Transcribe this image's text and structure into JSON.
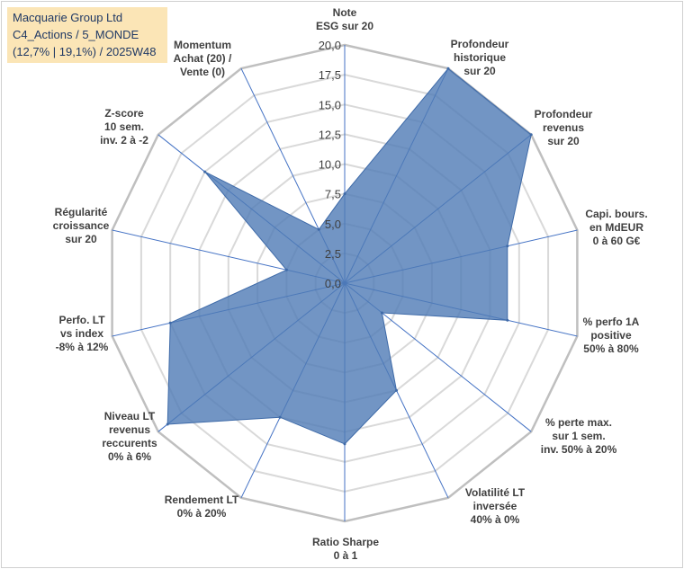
{
  "title_box": {
    "line1": "Macquarie Group Ltd",
    "line2": "C4_Actions / 5_MONDE",
    "line3": "(12,7% | 19,1%) / 2025W48"
  },
  "chart_data": {
    "type": "radar",
    "title": "Macquarie Group Ltd",
    "scale": {
      "min": 0,
      "max": 20,
      "step": 2.5
    },
    "tick_labels": [
      "0,0",
      "2,5",
      "5,0",
      "7,5",
      "10,0",
      "12,5",
      "15,0",
      "17,5",
      "20,0"
    ],
    "axes": [
      {
        "label": [
          "Note",
          "ESG sur 20"
        ],
        "value": 7.5
      },
      {
        "label": [
          "Profondeur",
          "historique",
          "sur 20"
        ],
        "value": 20
      },
      {
        "label": [
          "Profondeur",
          "revenus",
          "sur 20"
        ],
        "value": 20
      },
      {
        "label": [
          "Capi. bours.",
          "en MdEUR",
          "0 à 60 G€"
        ],
        "value": 14
      },
      {
        "label": [
          "% perfo 1A",
          "positive",
          "50% à 80%"
        ],
        "value": 14
      },
      {
        "label": [
          "% perte max.",
          "sur 1 sem.",
          "inv. 50% à 20%"
        ],
        "value": 4
      },
      {
        "label": [
          "Volatilité LT",
          "inversée",
          "40% à 0%"
        ],
        "value": 10
      },
      {
        "label": [
          "Ratio Sharpe",
          "0 à 1"
        ],
        "value": 13.5
      },
      {
        "label": [
          "Rendement LT",
          "0% à 20%"
        ],
        "value": 12.5
      },
      {
        "label": [
          "Niveau LT",
          "revenus",
          "reccurents",
          "0% à 6%"
        ],
        "value": 19
      },
      {
        "label": [
          "Perfo. LT",
          "vs index",
          "-8% à 12%"
        ],
        "value": 15
      },
      {
        "label": [
          "Régularité",
          "croissance",
          "sur 20"
        ],
        "value": 5
      },
      {
        "label": [
          "Z-score",
          "10 sem.",
          "inv. 2 à -2"
        ],
        "value": 15
      },
      {
        "label": [
          "Momentum",
          "Achat (20) /",
          "Vente (0)"
        ],
        "value": 5
      }
    ],
    "series": [
      {
        "name": "Macquarie Group Ltd",
        "color": "#4f7ab5",
        "fill_opacity": 0.8
      }
    ]
  }
}
